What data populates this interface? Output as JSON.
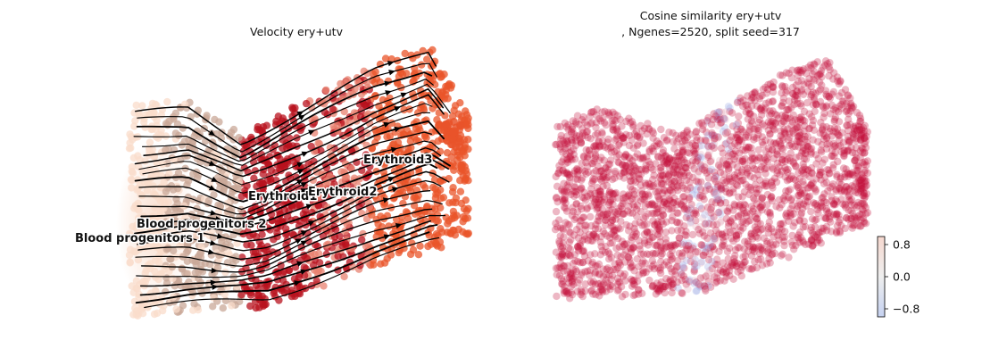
{
  "chart_data": [
    {
      "type": "scatter",
      "title": "Velocity ery+utv",
      "categories": [
        "Blood progenitors 1",
        "Blood progenitors 2",
        "Erythroid1",
        "Erythroid2",
        "Erythroid3"
      ],
      "cluster_colors": [
        "#f9dccb",
        "#c9a898",
        "#b8121e",
        "#e88270",
        "#e9542a"
      ],
      "overlay": "velocity streamlines"
    },
    {
      "type": "scatter",
      "title_line1": "Cosine similarity ery+utv",
      "title_line2": ", Ngenes=2520, split seed=317",
      "colorbar": {
        "ticks": [
          "0.8",
          "0.0",
          "−0.8"
        ],
        "tick_values": [
          0.8,
          0.0,
          -0.8
        ],
        "range": [
          -1,
          1
        ],
        "colormap": "coolwarm"
      }
    }
  ]
}
